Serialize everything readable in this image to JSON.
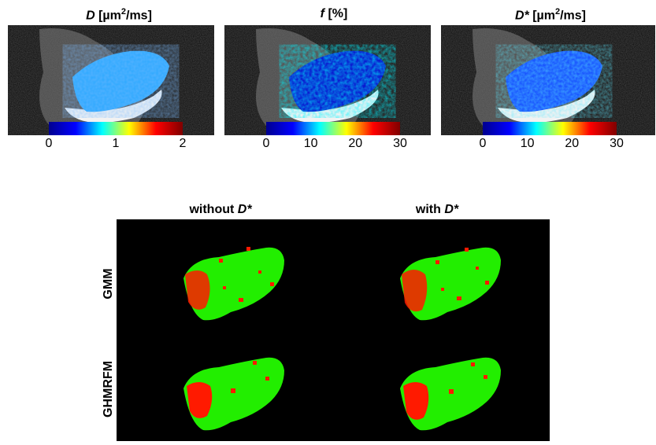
{
  "top_panels": [
    {
      "title_symbol": "D",
      "title_unit_pre": " [µm",
      "title_unit_sup": "2",
      "title_unit_post": "/ms]",
      "ticks": [
        "0",
        "1",
        "2"
      ]
    },
    {
      "title_symbol": "f",
      "title_unit_pre": " [%]",
      "title_unit_sup": "",
      "title_unit_post": "",
      "ticks": [
        "0",
        "10",
        "20",
        "30"
      ]
    },
    {
      "title_symbol": "D*",
      "title_unit_pre": " [µm",
      "title_unit_sup": "2",
      "title_unit_post": "/ms]",
      "ticks": [
        "0",
        "10",
        "20",
        "30"
      ]
    }
  ],
  "colormap_colors": [
    "#00008f",
    "#0000ff",
    "#00ffff",
    "#ffff00",
    "#ff0000",
    "#800000"
  ],
  "segmentation": {
    "col_titles": [
      {
        "prefix": "without ",
        "symbol": "D*"
      },
      {
        "prefix": "with ",
        "symbol": "D*"
      }
    ],
    "row_labels": [
      "GMM",
      "GHMRFM"
    ],
    "class_colors": {
      "tissue": "#22ee00",
      "lesion": "#ff1a00",
      "background": "#000000"
    }
  }
}
